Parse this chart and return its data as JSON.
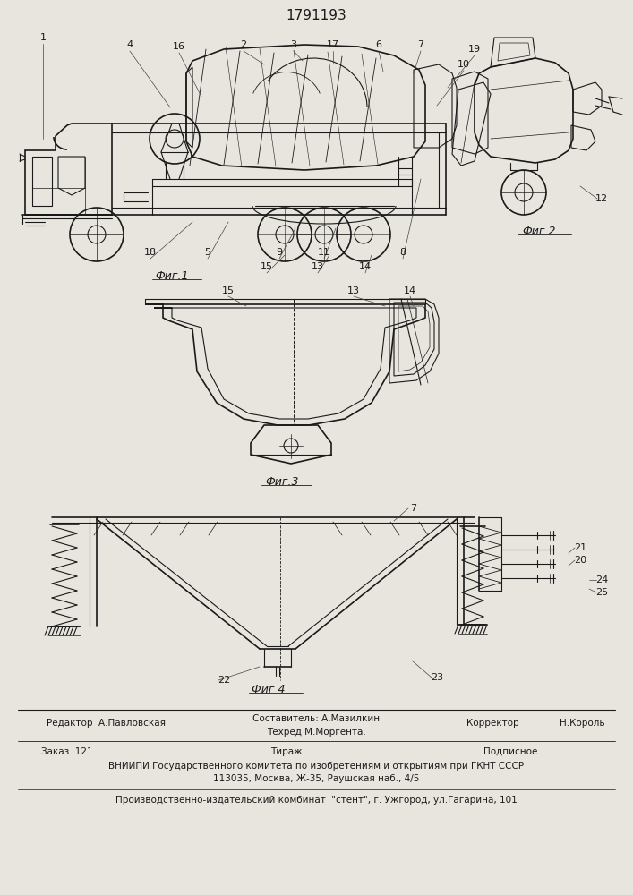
{
  "patent_number": "1791193",
  "background_color": "#e8e5de",
  "fig1_labels": [
    [
      "1",
      48,
      42,
      48,
      155
    ],
    [
      "4",
      145,
      50,
      190,
      120
    ],
    [
      "16",
      200,
      52,
      225,
      108
    ],
    [
      "2",
      272,
      50,
      295,
      72
    ],
    [
      "3",
      328,
      50,
      338,
      68
    ],
    [
      "17",
      372,
      50,
      372,
      70
    ],
    [
      "6",
      423,
      50,
      428,
      80
    ],
    [
      "7",
      470,
      50,
      462,
      82
    ],
    [
      "19",
      530,
      55,
      500,
      98
    ],
    [
      "10",
      518,
      72,
      488,
      118
    ],
    [
      "18",
      168,
      282,
      215,
      248
    ],
    [
      "5",
      232,
      282,
      255,
      248
    ],
    [
      "9",
      312,
      282,
      330,
      255
    ],
    [
      "11",
      362,
      282,
      375,
      255
    ],
    [
      "8",
      450,
      282,
      470,
      200
    ],
    [
      "15",
      298,
      298,
      318,
      285
    ],
    [
      "13",
      355,
      298,
      368,
      285
    ],
    [
      "14",
      408,
      298,
      415,
      285
    ]
  ],
  "fig2_labels": [
    [
      "12",
      672,
      222,
      648,
      208
    ]
  ],
  "fig3_labels": [
    [
      "15",
      255,
      325,
      275,
      342
    ],
    [
      "13",
      395,
      325,
      430,
      342
    ],
    [
      "14",
      458,
      325,
      462,
      342
    ]
  ],
  "fig4_labels": [
    [
      "7",
      462,
      568,
      440,
      582
    ],
    [
      "22",
      250,
      760,
      290,
      745
    ],
    [
      "23",
      488,
      757,
      460,
      738
    ],
    [
      "21",
      648,
      612,
      635,
      618
    ],
    [
      "20",
      648,
      626,
      635,
      632
    ],
    [
      "24",
      672,
      648,
      658,
      648
    ],
    [
      "25",
      672,
      662,
      658,
      658
    ]
  ]
}
